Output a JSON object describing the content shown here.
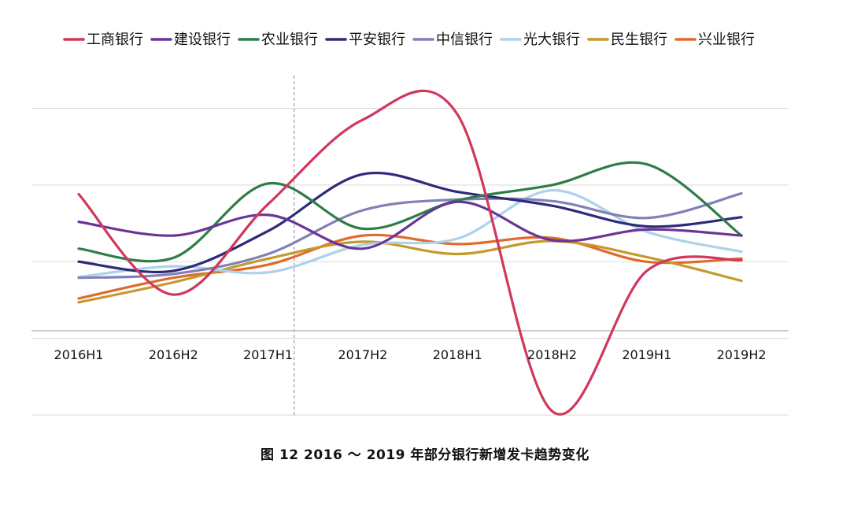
{
  "caption": "图 12  2016 ～ 2019 年部分银行新增发卡趋势变化",
  "chart_data": {
    "type": "line",
    "title": "",
    "xlabel": "",
    "ylabel": "",
    "categories": [
      "2016H1",
      "2016H2",
      "2017H1",
      "2017H2",
      "2018H1",
      "2018H2",
      "2019H1",
      "2019H2"
    ],
    "ylim": [
      -1,
      3
    ],
    "y_gridlines": [
      -1,
      0,
      1,
      2,
      3
    ],
    "y_tick_labels_shown": false,
    "x_axis_at": 0.1,
    "reference_line": {
      "between": [
        "2017H1",
        "2017H2"
      ],
      "style": "dashed"
    },
    "legend_position": "top",
    "grid": true,
    "series": [
      {
        "name": "工商银行",
        "color": "#d1375a",
        "values": [
          1.88,
          0.57,
          1.75,
          2.85,
          2.92,
          -0.95,
          0.88,
          1.02
        ]
      },
      {
        "name": "建设银行",
        "color": "#6a3596",
        "values": [
          1.52,
          1.34,
          1.61,
          1.17,
          1.78,
          1.28,
          1.42,
          1.34
        ]
      },
      {
        "name": "农业银行",
        "color": "#2e7d46",
        "values": [
          1.17,
          1.05,
          2.02,
          1.43,
          1.8,
          2.0,
          2.27,
          1.34
        ]
      },
      {
        "name": "平安银行",
        "color": "#2e2a7a",
        "values": [
          1.0,
          0.88,
          1.4,
          2.14,
          1.91,
          1.73,
          1.46,
          1.58
        ]
      },
      {
        "name": "中信银行",
        "color": "#8181b8",
        "values": [
          0.79,
          0.84,
          1.1,
          1.67,
          1.81,
          1.79,
          1.57,
          1.89
        ]
      },
      {
        "name": "光大银行",
        "color": "#add2ea",
        "values": [
          0.8,
          0.94,
          0.86,
          1.22,
          1.3,
          1.93,
          1.39,
          1.13
        ]
      },
      {
        "name": "民生银行",
        "color": "#c49a2c",
        "values": [
          0.47,
          0.73,
          1.04,
          1.26,
          1.1,
          1.27,
          1.06,
          0.75
        ]
      },
      {
        "name": "兴业银行",
        "color": "#e06a2c",
        "values": [
          0.52,
          0.79,
          0.96,
          1.34,
          1.23,
          1.31,
          1.0,
          1.04
        ]
      }
    ]
  }
}
